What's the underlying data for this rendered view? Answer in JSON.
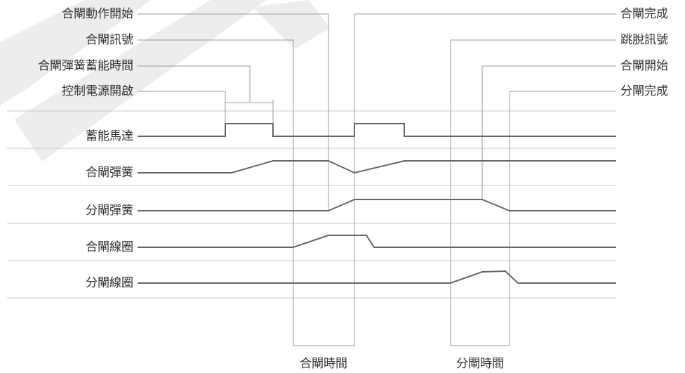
{
  "labels": {
    "top_left": [
      "合閘動作開始",
      "合閘訊號",
      "合閘彈簧蓄能時間",
      "控制電源開啟"
    ],
    "top_right": [
      "合閘完成",
      "跳脫訊號",
      "合閘開始",
      "分閘完成"
    ],
    "rows": [
      "蓄能馬達",
      "合閘彈簧",
      "分閘彈簧",
      "合閘線圈",
      "分閘線圈"
    ],
    "bottom": [
      "合閘時間",
      "分閘時間"
    ]
  },
  "colors": {
    "signal": "#666666",
    "grid": "#c8c8c8",
    "leader": "#9a9a9a",
    "text": "#333333",
    "watermark": "#ececec"
  }
}
